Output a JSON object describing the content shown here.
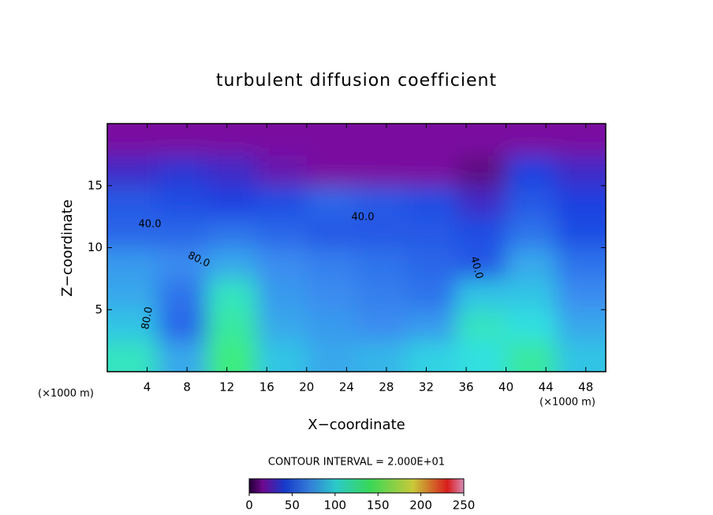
{
  "chart_data": {
    "type": "contour",
    "title": "turbulent diffusion coefficient",
    "x_label": "X−coordinate",
    "y_label": "Z−coordinate",
    "x_unit": "(×1000 m)",
    "contour_interval": "CONTOUR INTERVAL = 2.000E+01",
    "xlim": [
      0,
      50
    ],
    "ylim": [
      0,
      20
    ],
    "xticks": [
      4,
      8,
      12,
      16,
      20,
      24,
      28,
      32,
      36,
      40,
      44,
      48
    ],
    "yticks": [
      5,
      10,
      15
    ],
    "x_edges": [
      0,
      5,
      10,
      15,
      20,
      25,
      30,
      35,
      40,
      45,
      50
    ],
    "y_edges": [
      0,
      2.5,
      5,
      7.5,
      10,
      12.5,
      15,
      17.5,
      20
    ],
    "values": [
      [
        110,
        80,
        130,
        90,
        80,
        85,
        95,
        100,
        120,
        90
      ],
      [
        90,
        55,
        120,
        80,
        75,
        70,
        75,
        110,
        100,
        80
      ],
      [
        80,
        60,
        110,
        75,
        70,
        65,
        60,
        90,
        90,
        70
      ],
      [
        75,
        70,
        80,
        70,
        65,
        60,
        55,
        50,
        80,
        60
      ],
      [
        55,
        55,
        60,
        55,
        50,
        50,
        50,
        45,
        60,
        45
      ],
      [
        50,
        45,
        40,
        45,
        55,
        50,
        45,
        30,
        50,
        40
      ],
      [
        30,
        35,
        30,
        20,
        15,
        15,
        15,
        10,
        40,
        30
      ],
      [
        15,
        15,
        15,
        15,
        15,
        15,
        15,
        15,
        15,
        15
      ]
    ],
    "annotations": [
      "40.0",
      "40.0",
      "40.0",
      "80.0",
      "80.0"
    ],
    "colorbar_lim": [
      0,
      250
    ],
    "colorbar_ticks": [
      0,
      50,
      100,
      150,
      200,
      250
    ],
    "colormap": [
      {
        "value": 0,
        "color": "#2a0040"
      },
      {
        "value": 15,
        "color": "#7a0aa0"
      },
      {
        "value": 40,
        "color": "#1a40e0"
      },
      {
        "value": 70,
        "color": "#3a8cf0"
      },
      {
        "value": 100,
        "color": "#30e0e0"
      },
      {
        "value": 140,
        "color": "#40f060"
      },
      {
        "value": 190,
        "color": "#e0e040"
      },
      {
        "value": 230,
        "color": "#f02020"
      },
      {
        "value": 250,
        "color": "#f0a0d0"
      }
    ]
  }
}
